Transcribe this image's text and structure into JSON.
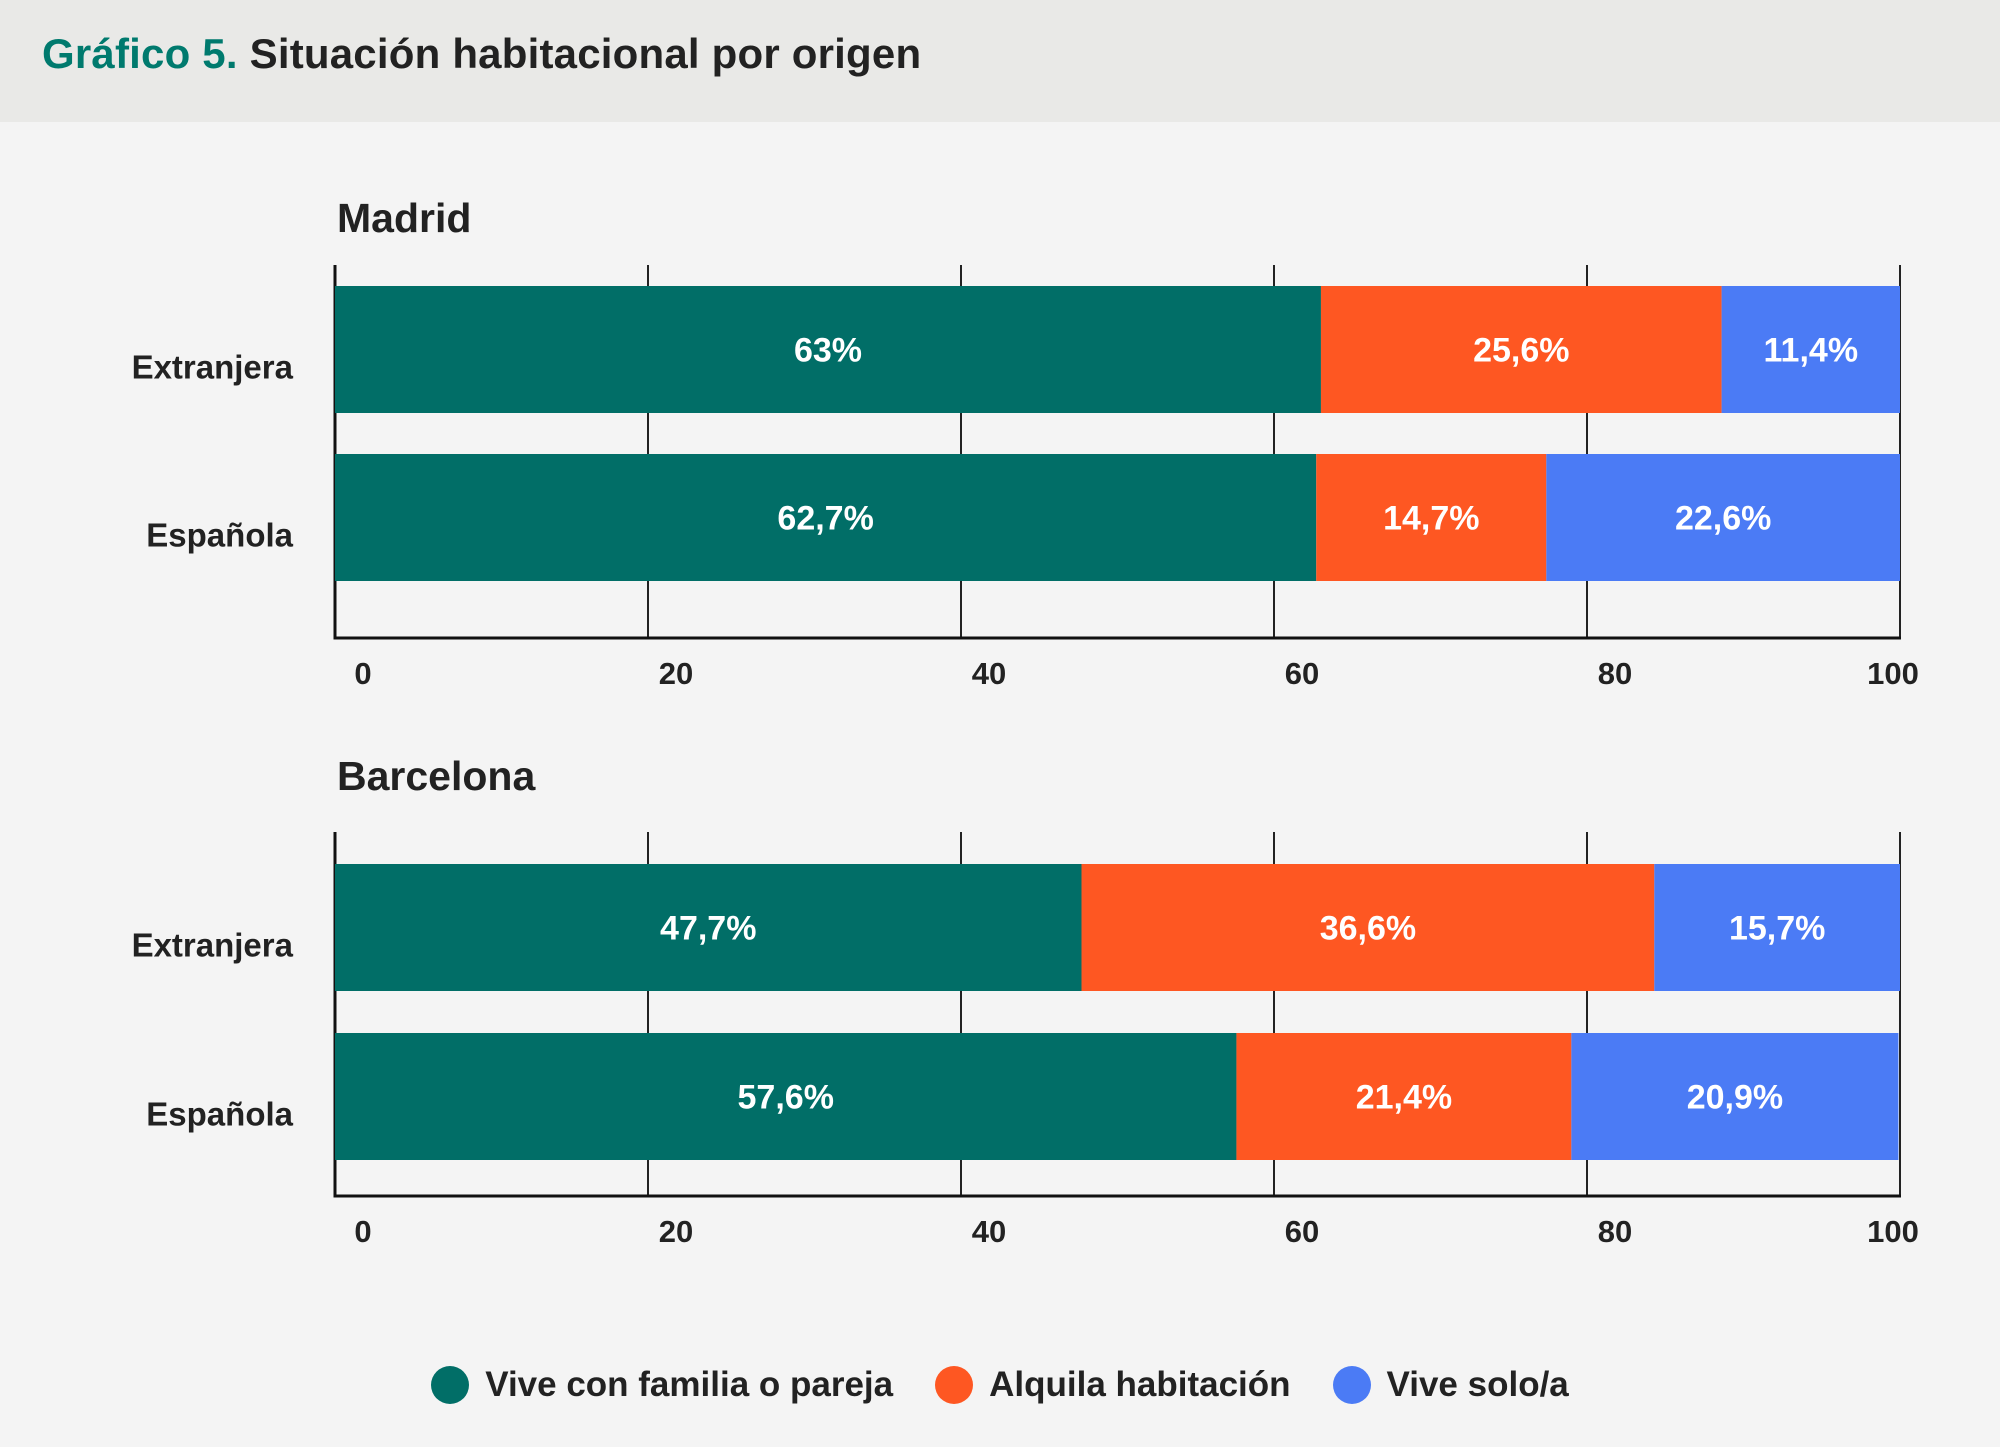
{
  "header": {
    "prefix": "Gráfico 5.",
    "title": "Situación habitacional por origen"
  },
  "colors": {
    "family": "#016e67",
    "room": "#fe5722",
    "alone": "#4b7bf5"
  },
  "chart_data": [
    {
      "type": "bar",
      "orientation": "horizontal",
      "stacked": true,
      "title": "Madrid",
      "categories": [
        "Extranjera",
        "Española"
      ],
      "series": [
        {
          "name": "Vive con familia o pareja",
          "values": [
            63,
            62.7
          ],
          "labels": [
            "63%",
            "62,7%"
          ]
        },
        {
          "name": "Alquila habitación",
          "values": [
            25.6,
            14.7
          ],
          "labels": [
            "25,6%",
            "14,7%"
          ]
        },
        {
          "name": "Vive solo/a",
          "values": [
            11.4,
            22.6
          ],
          "labels": [
            "11,4%",
            "22,6%"
          ]
        }
      ],
      "xlim": [
        0,
        100
      ],
      "xticks": [
        "0",
        "20",
        "40",
        "60",
        "80",
        "100"
      ],
      "grid": true,
      "legend": "bottom"
    },
    {
      "type": "bar",
      "orientation": "horizontal",
      "stacked": true,
      "title": "Barcelona",
      "categories": [
        "Extranjera",
        "Española"
      ],
      "series": [
        {
          "name": "Vive con familia o pareja",
          "values": [
            47.7,
            57.6
          ],
          "labels": [
            "47,7%",
            "57,6%"
          ]
        },
        {
          "name": "Alquila habitación",
          "values": [
            36.6,
            21.4
          ],
          "labels": [
            "36,6%",
            "21,4%"
          ]
        },
        {
          "name": "Vive solo/a",
          "values": [
            15.7,
            20.9
          ],
          "labels": [
            "15,7%",
            "20,9%"
          ]
        }
      ],
      "xlim": [
        0,
        100
      ],
      "xticks": [
        "0",
        "20",
        "40",
        "60",
        "80",
        "100"
      ],
      "grid": true,
      "legend": "bottom"
    }
  ],
  "legend": [
    {
      "label": "Vive con familia o pareja",
      "color": "#016e67"
    },
    {
      "label": "Alquila habitación",
      "color": "#fe5722"
    },
    {
      "label": "Vive solo/a",
      "color": "#4b7bf5"
    }
  ]
}
